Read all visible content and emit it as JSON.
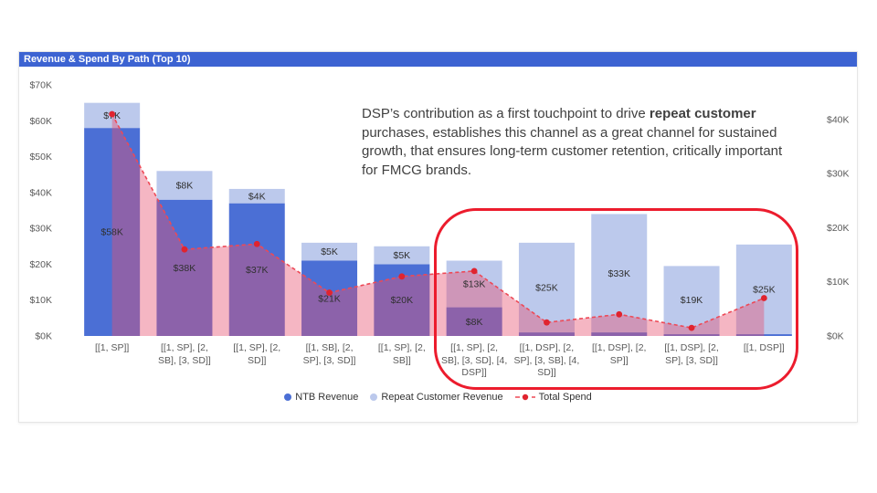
{
  "panel": {
    "title": "Revenue & Spend By Path (Top 10)"
  },
  "colors": {
    "title_bar": "#3c63d2",
    "ntb": "#4b6fd5",
    "repeat": "#bcc9ec",
    "spend_line": "#ed4956",
    "spend_marker": "#e0242f",
    "spend_area": "rgba(231,81,111,0.42)",
    "highlight_ring": "#ec1c2d",
    "label_text": "#303030",
    "axis_text": "#5a5a5a"
  },
  "annotation": {
    "pre": "DSP’s contribution as a first touchpoint to drive ",
    "bold": "repeat customer",
    "post": " purchases, establishes this channel as a great channel for sustained growth, that ensures long-term customer retention, critically important for FMCG brands."
  },
  "chart_data": {
    "type": "combo: stacked bar (left axis) + dashed line with shaded area (right axis)",
    "title": "Revenue & Spend By Path (Top 10)",
    "categories": [
      "[[1, SP]]",
      "[[1, SP], [2, SB], [3, SD]]",
      "[[1, SP], [2, SD]]",
      "[[1, SB], [2, SP], [3, SD]]",
      "[[1, SP], [2, SB]]",
      "[[1, SP], [2, SB], [3, SD], [4, DSP]]",
      "[[1, DSP], [2, SP], [3, SB], [4, SD]]",
      "[[1, DSP], [2, SP]]",
      "[[1, DSP], [2, SP], [3, SD]]",
      "[[1, DSP]]"
    ],
    "series": [
      {
        "name": "NTB Revenue",
        "type": "bar",
        "axis": "left",
        "color_key": "ntb",
        "values_k": [
          58,
          38,
          37,
          21,
          20,
          8,
          1,
          1,
          0.5,
          0.5
        ],
        "labels": [
          "$58K",
          "$38K",
          "$37K",
          "$21K",
          "$20K",
          "$8K",
          "",
          "",
          "",
          ""
        ]
      },
      {
        "name": "Repeat Customer Revenue",
        "type": "bar",
        "axis": "left",
        "color_key": "repeat",
        "values_k": [
          7,
          8,
          4,
          5,
          5,
          13,
          25,
          33,
          19,
          25
        ],
        "labels": [
          "$7K",
          "$8K",
          "$4K",
          "$5K",
          "$5K",
          "$13K",
          "$25K",
          "$33K",
          "$19K",
          "$25K"
        ]
      },
      {
        "name": "Total Spend",
        "type": "line-area",
        "axis": "right",
        "color_key": "spend_line",
        "values_k": [
          41,
          16,
          17,
          8,
          11,
          12,
          2.5,
          4,
          1.5,
          7
        ],
        "labels": []
      }
    ],
    "left_axis": {
      "ticks": [
        "$0K",
        "$10K",
        "$20K",
        "$30K",
        "$40K",
        "$50K",
        "$60K",
        "$70K"
      ],
      "ylim": [
        0,
        70
      ]
    },
    "right_axis": {
      "ticks": [
        "$0K",
        "$10K",
        "$20K",
        "$30K",
        "$40K"
      ],
      "ylim": [
        0,
        46.4
      ]
    },
    "grid": false,
    "legend_position": "bottom-center",
    "legend": [
      {
        "label": "NTB Revenue",
        "marker": "dot",
        "color_key": "ntb"
      },
      {
        "label": "Repeat Customer Revenue",
        "marker": "dot",
        "color_key": "repeat"
      },
      {
        "label": "Total Spend",
        "marker": "dash-dot",
        "color_key": "spend_line"
      }
    ]
  }
}
